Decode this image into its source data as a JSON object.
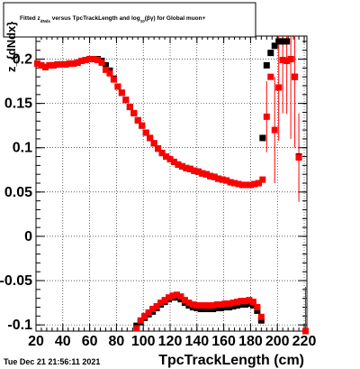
{
  "chart_data": {
    "type": "scatter",
    "title_parts": {
      "pre": "Fitted  z",
      "sub1": "dNdx",
      "mid": "  versus  TpcTrackLength and log",
      "sub2": "10",
      "post": "(βγ) for Global muon+"
    },
    "ylabel": "z_{dNdx}",
    "xlabel": "TpcTrackLength (cm)",
    "xlim": [
      20,
      222
    ],
    "ylim": [
      -0.107,
      0.226
    ],
    "xticks": [
      "20",
      "40",
      "60",
      "80",
      "100",
      "120",
      "140",
      "160",
      "180",
      "200",
      "220"
    ],
    "yticks": [
      "-0.1",
      "-0.05",
      "0",
      "0.05",
      "0.1",
      "0.15",
      "0.2"
    ],
    "grid": true,
    "series": [
      {
        "color": "#000000",
        "upper": {
          "x": [
            21,
            24,
            27,
            30,
            33,
            36,
            39,
            42,
            45,
            48,
            51,
            54,
            57,
            60,
            63,
            66,
            69,
            72,
            75,
            78,
            81,
            84,
            87,
            90,
            93,
            96,
            99,
            102,
            105,
            108,
            111,
            114,
            117,
            120,
            123,
            126,
            129,
            132,
            135,
            138,
            141,
            144,
            147,
            150,
            153,
            156,
            159,
            162,
            165,
            168,
            171,
            174,
            177,
            180,
            183,
            186,
            189,
            192,
            195,
            198,
            201,
            204,
            207,
            210,
            213,
            216
          ],
          "y": [
            0.195,
            0.193,
            0.191,
            0.193,
            0.193,
            0.194,
            0.194,
            0.194,
            0.195,
            0.195,
            0.196,
            0.198,
            0.199,
            0.2,
            0.2,
            0.2,
            0.198,
            0.193,
            0.187,
            0.178,
            0.169,
            0.162,
            0.154,
            0.146,
            0.139,
            0.131,
            0.125,
            0.117,
            0.111,
            0.105,
            0.099,
            0.094,
            0.09,
            0.087,
            0.084,
            0.081,
            0.079,
            0.077,
            0.076,
            0.074,
            0.073,
            0.071,
            0.07,
            0.068,
            0.067,
            0.065,
            0.064,
            0.063,
            0.061,
            0.06,
            0.059,
            0.058,
            0.058,
            0.058,
            0.059,
            0.06,
            0.111,
            0.193,
            0.207,
            0.215,
            0.22,
            0.22,
            0.22,
            0.2,
            0.18,
            0.09
          ]
        },
        "lower": {
          "x": [
            95,
            98,
            101,
            104,
            107,
            110,
            113,
            116,
            119,
            122,
            125,
            128,
            131,
            134,
            137,
            140,
            143,
            146,
            149,
            152,
            155,
            158,
            161,
            164,
            167,
            170,
            173,
            176,
            179,
            182,
            185,
            188
          ],
          "y": [
            -0.101,
            -0.097,
            -0.092,
            -0.088,
            -0.085,
            -0.081,
            -0.077,
            -0.074,
            -0.071,
            -0.069,
            -0.069,
            -0.071,
            -0.075,
            -0.078,
            -0.08,
            -0.081,
            -0.082,
            -0.082,
            -0.082,
            -0.082,
            -0.081,
            -0.081,
            -0.08,
            -0.08,
            -0.079,
            -0.078,
            -0.077,
            -0.077,
            -0.076,
            -0.078,
            -0.084,
            -0.095
          ]
        }
      },
      {
        "color": "#ff0000",
        "upper": {
          "x": [
            21,
            24,
            27,
            30,
            33,
            36,
            39,
            42,
            45,
            48,
            51,
            54,
            57,
            60,
            63,
            66,
            69,
            72,
            75,
            78,
            81,
            84,
            87,
            90,
            93,
            96,
            99,
            102,
            105,
            108,
            111,
            114,
            117,
            120,
            123,
            126,
            129,
            132,
            135,
            138,
            141,
            144,
            147,
            150,
            153,
            156,
            159,
            162,
            165,
            168,
            171,
            174,
            177,
            180,
            183,
            186,
            189,
            192,
            195,
            198,
            201,
            204,
            207,
            210,
            213,
            216
          ],
          "y": [
            0.195,
            0.193,
            0.191,
            0.193,
            0.193,
            0.194,
            0.194,
            0.194,
            0.195,
            0.195,
            0.196,
            0.198,
            0.199,
            0.2,
            0.2,
            0.199,
            0.196,
            0.188,
            0.184,
            0.177,
            0.169,
            0.162,
            0.154,
            0.146,
            0.139,
            0.131,
            0.125,
            0.117,
            0.111,
            0.105,
            0.099,
            0.094,
            0.09,
            0.087,
            0.084,
            0.081,
            0.079,
            0.077,
            0.076,
            0.074,
            0.073,
            0.071,
            0.07,
            0.068,
            0.067,
            0.065,
            0.064,
            0.063,
            0.061,
            0.06,
            0.059,
            0.058,
            0.058,
            0.058,
            0.059,
            0.06,
            0.064,
            0.135,
            0.18,
            0.12,
            0.168,
            0.199,
            0.198,
            0.2,
            0.18,
            0.089
          ]
        },
        "upper_err": [
          0,
          0,
          0,
          0,
          0,
          0,
          0,
          0,
          0,
          0,
          0,
          0,
          0,
          0,
          0,
          0,
          0,
          0,
          0,
          0,
          0,
          0,
          0,
          0,
          0,
          0,
          0,
          0,
          0,
          0,
          0,
          0,
          0,
          0,
          0,
          0,
          0,
          0,
          0,
          0,
          0,
          0,
          0,
          0,
          0,
          0,
          0,
          0,
          0,
          0,
          0,
          0,
          0,
          0,
          0,
          0,
          0,
          0.04,
          0,
          0.06,
          0.06,
          0.06,
          0.06,
          0.09,
          0.08,
          0.05
        ],
        "lower": {
          "x": [
            95,
            98,
            101,
            104,
            107,
            110,
            113,
            116,
            119,
            122,
            125,
            128,
            131,
            134,
            137,
            140,
            143,
            146,
            149,
            152,
            155,
            158,
            161,
            164,
            167,
            170,
            173,
            176,
            179,
            182,
            185,
            188,
            221
          ],
          "y": [
            -0.104,
            -0.095,
            -0.09,
            -0.086,
            -0.082,
            -0.079,
            -0.075,
            -0.072,
            -0.069,
            -0.067,
            -0.066,
            -0.068,
            -0.072,
            -0.075,
            -0.077,
            -0.078,
            -0.078,
            -0.078,
            -0.078,
            -0.078,
            -0.077,
            -0.077,
            -0.076,
            -0.076,
            -0.075,
            -0.074,
            -0.073,
            -0.073,
            -0.072,
            -0.074,
            -0.08,
            -0.091,
            -0.107
          ]
        },
        "lower_err": [
          0,
          0,
          0,
          0,
          0,
          0,
          0,
          0,
          0,
          0,
          0,
          0,
          0,
          0,
          0,
          0,
          0,
          0,
          0,
          0,
          0,
          0,
          0,
          0,
          0,
          0,
          0,
          0,
          0,
          0,
          0,
          0,
          0.05
        ]
      }
    ]
  },
  "footer": {
    "timestamp": "Tue Dec 21 21:56:11 2021"
  }
}
